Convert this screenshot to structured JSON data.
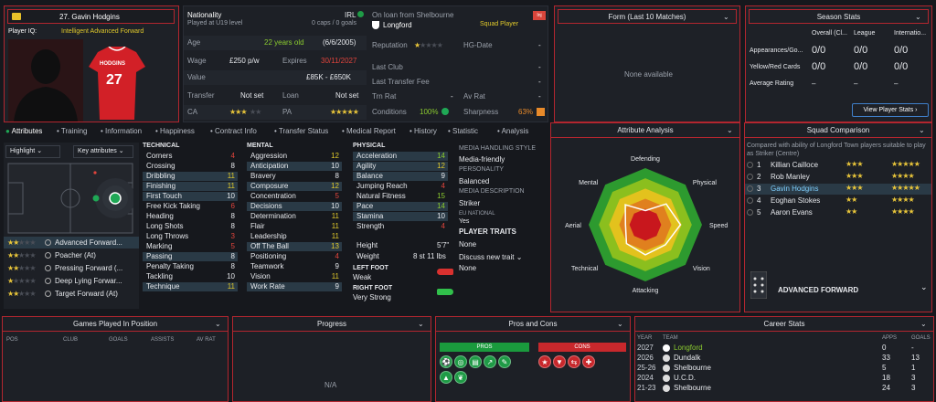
{
  "player": {
    "name": "27. Gavin Hodgins",
    "iq_label": "Player IQ:",
    "iq_value": "Intelligent Advanced Forward",
    "shirt_name": "HODGINS",
    "shirt_number": "27"
  },
  "info": {
    "nationality_label": "Nationality",
    "nationality_value": "IRL",
    "nationality_sub": "Played at U19 level",
    "caps": "0 caps / 0 goals",
    "age_label": "Age",
    "age_value": "22 years old",
    "dob": "(6/6/2005)",
    "wage_label": "Wage",
    "wage_value": "£250 p/w",
    "expires_label": "Expires",
    "expires_value": "30/11/2027",
    "value_label": "Value",
    "value_value": "£85K - £650K",
    "transfer_label": "Transfer",
    "transfer_value": "Not set",
    "loan_label": "Loan",
    "loan_value": "Not set",
    "ca_label": "CA",
    "pa_label": "PA",
    "ca_stars": "★★★",
    "ca_gray": "★★",
    "pa_stars": "★★★★★"
  },
  "loan": {
    "title": "On loan from Shelbourne",
    "club": "Longford",
    "status": "Squad Player",
    "badge": "Inj",
    "reputation_label": "Reputation",
    "hg_label": "HG-Date",
    "hg_value": "-",
    "last_club_label": "Last Club",
    "last_club_value": "-",
    "last_fee_label": "Last Transfer Fee",
    "last_fee_value": "-",
    "trn_label": "Trn Rat",
    "trn_value": "-",
    "av_label": "Av Rat",
    "av_value": "-",
    "conditions_label": "Conditions",
    "conditions_value": "100%",
    "sharpness_label": "Sharpness",
    "sharpness_value": "63%"
  },
  "form": {
    "title": "Form (Last 10 Matches)",
    "empty": "None available"
  },
  "season": {
    "title": "Season Stats",
    "cols": [
      "Overall (Cl...",
      "League",
      "Internatio..."
    ],
    "rows": [
      {
        "label": "Appearances/Go...",
        "vals": [
          "0/0",
          "0/0",
          "0/0"
        ]
      },
      {
        "label": "Yellow/Red Cards",
        "vals": [
          "0/0",
          "0/0",
          "0/0"
        ]
      },
      {
        "label": "Average Rating",
        "vals": [
          "–",
          "–",
          "–"
        ]
      }
    ],
    "button": "View Player Stats"
  },
  "tabs": [
    "Attributes",
    "Training",
    "Information",
    "Happiness",
    "Contract Info",
    "Transfer Status",
    "Medical Report",
    "History",
    "Statistic",
    "Analysis"
  ],
  "positions": {
    "highlight": "Highlight",
    "key_attrs": "Key attributes",
    "roles": [
      {
        "stars": "★★",
        "gray": "★★★",
        "label": "Advanced Forward..."
      },
      {
        "stars": "★★",
        "gray": "★★★",
        "label": "Poacher (At)"
      },
      {
        "stars": "★★",
        "gray": "★★★",
        "label": "Pressing Forward (..."
      },
      {
        "stars": "★",
        "gray": "★★★★",
        "label": "Deep Lying Forwar..."
      },
      {
        "stars": "★★",
        "gray": "★★★",
        "label": "Target Forward (At)"
      }
    ]
  },
  "technical": {
    "title": "TECHNICAL",
    "items": [
      {
        "n": "Corners",
        "v": "4",
        "c": "red"
      },
      {
        "n": "Crossing",
        "v": "8",
        "c": "white"
      },
      {
        "n": "Dribbling",
        "v": "11",
        "c": "yellow"
      },
      {
        "n": "Finishing",
        "v": "11",
        "c": "yellow"
      },
      {
        "n": "First Touch",
        "v": "10",
        "c": "white"
      },
      {
        "n": "Free Kick Taking",
        "v": "6",
        "c": "red"
      },
      {
        "n": "Heading",
        "v": "8",
        "c": "white"
      },
      {
        "n": "Long Shots",
        "v": "8",
        "c": "white"
      },
      {
        "n": "Long Throws",
        "v": "3",
        "c": "red"
      },
      {
        "n": "Marking",
        "v": "5",
        "c": "red"
      },
      {
        "n": "Passing",
        "v": "8",
        "c": "white"
      },
      {
        "n": "Penalty Taking",
        "v": "8",
        "c": "white"
      },
      {
        "n": "Tackling",
        "v": "10",
        "c": "white"
      },
      {
        "n": "Technique",
        "v": "11",
        "c": "yellow"
      }
    ]
  },
  "mental": {
    "title": "MENTAL",
    "items": [
      {
        "n": "Aggression",
        "v": "12",
        "c": "yellow"
      },
      {
        "n": "Anticipation",
        "v": "10",
        "c": "white"
      },
      {
        "n": "Bravery",
        "v": "8",
        "c": "white"
      },
      {
        "n": "Composure",
        "v": "12",
        "c": "yellow"
      },
      {
        "n": "Concentration",
        "v": "5",
        "c": "red"
      },
      {
        "n": "Decisions",
        "v": "10",
        "c": "white"
      },
      {
        "n": "Determination",
        "v": "11",
        "c": "yellow"
      },
      {
        "n": "Flair",
        "v": "11",
        "c": "yellow"
      },
      {
        "n": "Leadership",
        "v": "11",
        "c": "yellow"
      },
      {
        "n": "Off The Ball",
        "v": "13",
        "c": "yellow"
      },
      {
        "n": "Positioning",
        "v": "4",
        "c": "red"
      },
      {
        "n": "Teamwork",
        "v": "9",
        "c": "white"
      },
      {
        "n": "Vision",
        "v": "11",
        "c": "yellow"
      },
      {
        "n": "Work Rate",
        "v": "9",
        "c": "white"
      }
    ]
  },
  "physical": {
    "title": "PHYSICAL",
    "items": [
      {
        "n": "Acceleration",
        "v": "14",
        "c": "green"
      },
      {
        "n": "Agility",
        "v": "12",
        "c": "yellow"
      },
      {
        "n": "Balance",
        "v": "9",
        "c": "white"
      },
      {
        "n": "Jumping Reach",
        "v": "4",
        "c": "red"
      },
      {
        "n": "Natural Fitness",
        "v": "15",
        "c": "green"
      },
      {
        "n": "Pace",
        "v": "14",
        "c": "green"
      },
      {
        "n": "Stamina",
        "v": "10",
        "c": "white"
      },
      {
        "n": "Strength",
        "v": "4",
        "c": "red"
      }
    ],
    "height_label": "Height",
    "height_value": "5'7\"",
    "weight_label": "Weight",
    "weight_value": "8 st 11 lbs",
    "left_foot_label": "LEFT FOOT",
    "left_foot_value": "Weak",
    "right_foot_label": "RIGHT FOOT",
    "right_foot_value": "Very Strong"
  },
  "media": {
    "style_label": "MEDIA HANDLING STYLE",
    "style_value": "Media-friendly",
    "personality_label": "PERSONALITY",
    "personality_value": "Balanced",
    "desc_label": "MEDIA DESCRIPTION",
    "desc_value": "Striker",
    "eu_label": "EU NATIONAL",
    "eu_value": "Yes",
    "traits_label": "PLAYER TRAITS",
    "traits_value": "None",
    "discuss": "Discuss new trait",
    "traits_value2": "None"
  },
  "analysis": {
    "title": "Attribute Analysis",
    "labels": [
      "Defending",
      "Physical",
      "Speed",
      "Vision",
      "Attacking",
      "Technical",
      "Aerial",
      "Mental"
    ],
    "values": [
      0.25,
      0.52,
      0.62,
      0.5,
      0.53,
      0.47,
      0.35,
      0.5
    ]
  },
  "squad": {
    "title": "Squad Comparison",
    "desc": "Compared with ability of Longford Town players suitable to play as Striker (Centre)",
    "players": [
      {
        "rank": "1",
        "name": "Killian Cailloce",
        "ca": "★★★",
        "pa": "★★★★★"
      },
      {
        "rank": "2",
        "name": "Rob Manley",
        "ca": "★★★",
        "pa": "★★★★"
      },
      {
        "rank": "3",
        "name": "Gavin Hodgins",
        "ca": "★★★",
        "pa": "★★★★★"
      },
      {
        "rank": "4",
        "name": "Eoghan Stokes",
        "ca": "★★",
        "pa": "★★★★"
      },
      {
        "rank": "5",
        "name": "Aaron Evans",
        "ca": "★★",
        "pa": "★★★★"
      }
    ],
    "role": "ADVANCED FORWARD"
  },
  "games": {
    "title": "Games Played In Position",
    "cols": [
      "POS",
      "CLUB",
      "GOALS",
      "ASSISTS",
      "AV RAT"
    ]
  },
  "progress": {
    "title": "Progress",
    "empty": "N/A"
  },
  "pros": {
    "title": "Pros and Cons",
    "pros_label": "PROS",
    "cons_label": "CONS"
  },
  "career": {
    "title": "Career Stats",
    "cols": [
      "YEAR",
      "TEAM",
      "APPS",
      "GOALS"
    ],
    "rows": [
      {
        "year": "2027",
        "team": "Longford",
        "apps": "0",
        "goals": "-"
      },
      {
        "year": "2026",
        "team": "Dundalk",
        "apps": "33",
        "goals": "13"
      },
      {
        "year": "25-26",
        "team": "Shelbourne",
        "apps": "5",
        "goals": "1"
      },
      {
        "year": "2024",
        "team": "U.C.D.",
        "apps": "18",
        "goals": "3"
      },
      {
        "year": "21-23",
        "team": "Shelbourne",
        "apps": "24",
        "goals": "3"
      }
    ]
  }
}
